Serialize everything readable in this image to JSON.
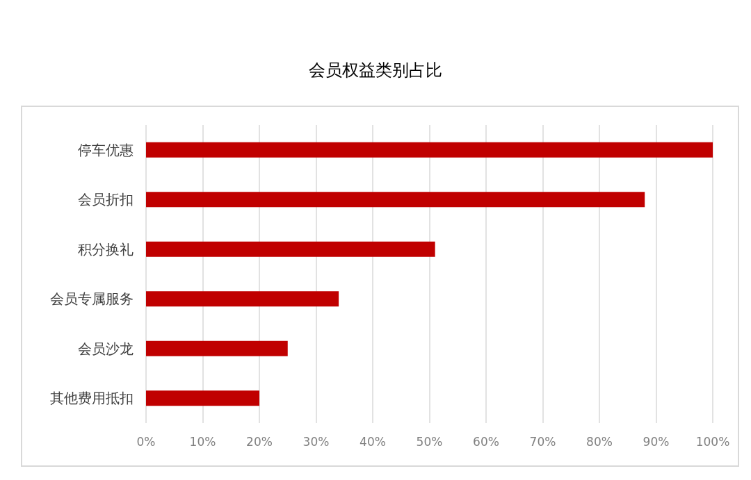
{
  "chart_data": {
    "type": "bar",
    "orientation": "horizontal",
    "title": "会员权益类别占比",
    "categories": [
      "停车优惠",
      "会员折扣",
      "积分换礼",
      "会员专属服务",
      "会员沙龙",
      "其他费用抵扣"
    ],
    "values": [
      100,
      88,
      51,
      34,
      25,
      20
    ],
    "color": "#c00000",
    "xlim": [
      0,
      100
    ],
    "xticks": [
      {
        "value": 0,
        "label": "0%"
      },
      {
        "value": 10,
        "label": "10%"
      },
      {
        "value": 20,
        "label": "20%"
      },
      {
        "value": 30,
        "label": "30%"
      },
      {
        "value": 40,
        "label": "40%"
      },
      {
        "value": 50,
        "label": "50%"
      },
      {
        "value": 60,
        "label": "60%"
      },
      {
        "value": 70,
        "label": "70%"
      },
      {
        "value": 80,
        "label": "80%"
      },
      {
        "value": 90,
        "label": "90%"
      },
      {
        "value": 100,
        "label": "100%"
      }
    ],
    "grid": "x"
  }
}
